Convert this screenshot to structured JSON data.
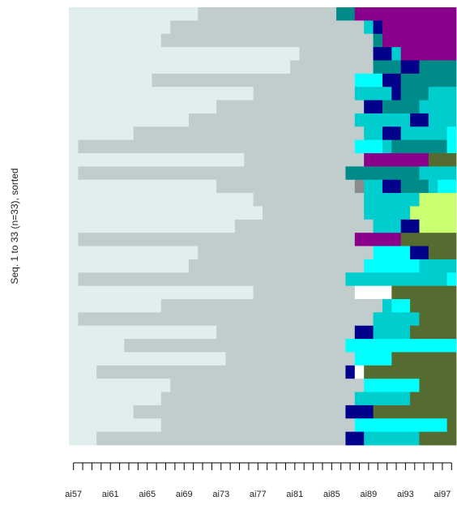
{
  "chart_data": {
    "type": "heatmap",
    "ylabel": "Seq. 1 to 33 (n=33), sorted",
    "xlabel": "",
    "title": "",
    "x_ticks": [
      "ai57",
      "ai58",
      "ai59",
      "ai60",
      "ai61",
      "ai62",
      "ai63",
      "ai64",
      "ai65",
      "ai66",
      "ai67",
      "ai68",
      "ai69",
      "ai70",
      "ai71",
      "ai72",
      "ai73",
      "ai74",
      "ai75",
      "ai76",
      "ai77",
      "ai78",
      "ai79",
      "ai80",
      "ai81",
      "ai82",
      "ai83",
      "ai84",
      "ai85",
      "ai86",
      "ai87",
      "ai88",
      "ai89",
      "ai90",
      "ai91",
      "ai92",
      "ai93",
      "ai94",
      "ai95",
      "ai96",
      "ai97",
      "ai98"
    ],
    "x_tick_labels": [
      "ai57",
      "ai61",
      "ai65",
      "ai69",
      "ai73",
      "ai77",
      "ai81",
      "ai85",
      "ai89",
      "ai93",
      "ai97"
    ],
    "x_range": [
      "ai57",
      "ai98"
    ],
    "n_sequences": 33,
    "state_colors": {
      "A": "#e0eeee",
      "B": "#c1cdcd",
      "C": "#00ffff",
      "D": "#00cdcd",
      "E": "#008b8b",
      "F": "#00008b",
      "G": "#8b008b",
      "H": "#556b2f",
      "I": "#caff70",
      "J": "#ffffff",
      "K": "#8b8b8b"
    },
    "sequences": [
      [
        [
          "A",
          57,
          70
        ],
        [
          "B",
          71,
          85
        ],
        [
          "E",
          86,
          87
        ],
        [
          "G",
          88,
          98
        ]
      ],
      [
        [
          "A",
          57,
          67
        ],
        [
          "B",
          68,
          88
        ],
        [
          "D",
          89,
          89
        ],
        [
          "F",
          90,
          90
        ],
        [
          "G",
          91,
          98
        ]
      ],
      [
        [
          "A",
          57,
          66
        ],
        [
          "B",
          67,
          89
        ],
        [
          "E",
          90,
          90
        ],
        [
          "G",
          91,
          98
        ]
      ],
      [
        [
          "A",
          57,
          81
        ],
        [
          "B",
          82,
          89
        ],
        [
          "F",
          90,
          91
        ],
        [
          "D",
          92,
          92
        ],
        [
          "G",
          93,
          98
        ]
      ],
      [
        [
          "A",
          57,
          80
        ],
        [
          "B",
          81,
          89
        ],
        [
          "E",
          90,
          92
        ],
        [
          "F",
          93,
          94
        ],
        [
          "E",
          95,
          98
        ]
      ],
      [
        [
          "A",
          57,
          65
        ],
        [
          "B",
          66,
          87
        ],
        [
          "C",
          88,
          90
        ],
        [
          "F",
          91,
          92
        ],
        [
          "E",
          93,
          98
        ]
      ],
      [
        [
          "A",
          57,
          76
        ],
        [
          "B",
          77,
          87
        ],
        [
          "D",
          88,
          91
        ],
        [
          "F",
          92,
          92
        ],
        [
          "E",
          93,
          95
        ],
        [
          "D",
          96,
          98
        ]
      ],
      [
        [
          "A",
          57,
          72
        ],
        [
          "B",
          73,
          88
        ],
        [
          "F",
          89,
          90
        ],
        [
          "E",
          91,
          94
        ],
        [
          "D",
          95,
          98
        ]
      ],
      [
        [
          "A",
          57,
          69
        ],
        [
          "B",
          70,
          87
        ],
        [
          "D",
          88,
          93
        ],
        [
          "F",
          94,
          95
        ],
        [
          "D",
          96,
          98
        ]
      ],
      [
        [
          "A",
          57,
          63
        ],
        [
          "B",
          64,
          88
        ],
        [
          "D",
          89,
          90
        ],
        [
          "F",
          91,
          92
        ],
        [
          "D",
          93,
          97
        ],
        [
          "C",
          98,
          98
        ]
      ],
      [
        [
          "A",
          57,
          57
        ],
        [
          "B",
          58,
          87
        ],
        [
          "C",
          88,
          90
        ],
        [
          "D",
          91,
          91
        ],
        [
          "E",
          92,
          97
        ],
        [
          "C",
          98,
          98
        ]
      ],
      [
        [
          "A",
          57,
          75
        ],
        [
          "B",
          76,
          88
        ],
        [
          "G",
          89,
          95
        ],
        [
          "H",
          96,
          98
        ]
      ],
      [
        [
          "A",
          57,
          57
        ],
        [
          "B",
          58,
          86
        ],
        [
          "E",
          87,
          94
        ],
        [
          "D",
          95,
          98
        ]
      ],
      [
        [
          "A",
          57,
          72
        ],
        [
          "B",
          73,
          87
        ],
        [
          "K",
          88,
          88
        ],
        [
          "D",
          89,
          90
        ],
        [
          "F",
          91,
          92
        ],
        [
          "E",
          93,
          95
        ],
        [
          "D",
          96,
          96
        ],
        [
          "C",
          97,
          98
        ]
      ],
      [
        [
          "A",
          57,
          76
        ],
        [
          "B",
          77,
          88
        ],
        [
          "D",
          89,
          94
        ],
        [
          "I",
          95,
          98
        ]
      ],
      [
        [
          "A",
          57,
          78
        ],
        [
          "B",
          78,
          88
        ],
        [
          "D",
          89,
          93
        ],
        [
          "I",
          94,
          98
        ]
      ],
      [
        [
          "A",
          57,
          74
        ],
        [
          "B",
          75,
          89
        ],
        [
          "D",
          90,
          92
        ],
        [
          "F",
          93,
          94
        ],
        [
          "I",
          95,
          98
        ]
      ],
      [
        [
          "A",
          57,
          57
        ],
        [
          "B",
          58,
          87
        ],
        [
          "G",
          88,
          92
        ],
        [
          "H",
          93,
          98
        ]
      ],
      [
        [
          "A",
          57,
          70
        ],
        [
          "B",
          71,
          89
        ],
        [
          "C",
          90,
          93
        ],
        [
          "F",
          94,
          95
        ],
        [
          "H",
          96,
          98
        ]
      ],
      [
        [
          "A",
          57,
          69
        ],
        [
          "B",
          70,
          88
        ],
        [
          "C",
          89,
          94
        ],
        [
          "D",
          95,
          98
        ]
      ],
      [
        [
          "A",
          57,
          57
        ],
        [
          "B",
          58,
          86
        ],
        [
          "D",
          87,
          97
        ],
        [
          "C",
          98,
          98
        ]
      ],
      [
        [
          "A",
          57,
          76
        ],
        [
          "B",
          77,
          87
        ],
        [
          "J",
          88,
          91
        ],
        [
          "H",
          92,
          98
        ]
      ],
      [
        [
          "A",
          57,
          66
        ],
        [
          "B",
          67,
          90
        ],
        [
          "D",
          91,
          91
        ],
        [
          "C",
          92,
          93
        ],
        [
          "H",
          94,
          98
        ]
      ],
      [
        [
          "A",
          57,
          57
        ],
        [
          "B",
          58,
          89
        ],
        [
          "D",
          90,
          94
        ],
        [
          "H",
          95,
          98
        ]
      ],
      [
        [
          "A",
          57,
          72
        ],
        [
          "B",
          73,
          87
        ],
        [
          "F",
          88,
          89
        ],
        [
          "D",
          90,
          93
        ],
        [
          "H",
          94,
          98
        ]
      ],
      [
        [
          "A",
          57,
          62
        ],
        [
          "B",
          63,
          86
        ],
        [
          "C",
          87,
          98
        ]
      ],
      [
        [
          "A",
          57,
          73
        ],
        [
          "B",
          74,
          87
        ],
        [
          "C",
          88,
          91
        ],
        [
          "H",
          92,
          98
        ]
      ],
      [
        [
          "A",
          57,
          59
        ],
        [
          "B",
          60,
          86
        ],
        [
          "F",
          87,
          87
        ],
        [
          "J",
          88,
          88
        ],
        [
          "H",
          89,
          98
        ]
      ],
      [
        [
          "A",
          57,
          67
        ],
        [
          "B",
          68,
          88
        ],
        [
          "C",
          89,
          94
        ],
        [
          "H",
          95,
          98
        ]
      ],
      [
        [
          "A",
          57,
          66
        ],
        [
          "B",
          67,
          87
        ],
        [
          "D",
          88,
          93
        ],
        [
          "H",
          94,
          98
        ]
      ],
      [
        [
          "A",
          57,
          63
        ],
        [
          "B",
          64,
          86
        ],
        [
          "F",
          87,
          89
        ],
        [
          "H",
          90,
          98
        ]
      ],
      [
        [
          "A",
          57,
          66
        ],
        [
          "B",
          67,
          87
        ],
        [
          "C",
          88,
          97
        ],
        [
          "H",
          98,
          98
        ]
      ],
      [
        [
          "A",
          57,
          59
        ],
        [
          "B",
          60,
          86
        ],
        [
          "F",
          87,
          88
        ],
        [
          "D",
          89,
          94
        ],
        [
          "H",
          95,
          98
        ]
      ]
    ]
  }
}
